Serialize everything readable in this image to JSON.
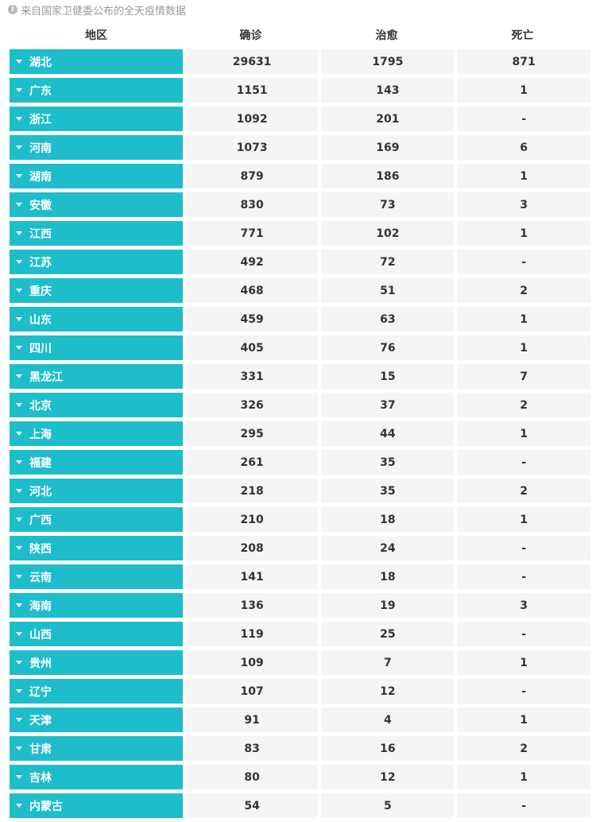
{
  "source_note": "来自国家卫健委公布的全天疫情数据",
  "info_icon_glyph": "i",
  "headers": {
    "area": "地区",
    "confirmed": "确诊",
    "cured": "治愈",
    "dead": "死亡"
  },
  "accent_color": "#1ebdcb",
  "rows": [
    {
      "area": "湖北",
      "confirmed": "29631",
      "cured": "1795",
      "dead": "871"
    },
    {
      "area": "广东",
      "confirmed": "1151",
      "cured": "143",
      "dead": "1"
    },
    {
      "area": "浙江",
      "confirmed": "1092",
      "cured": "201",
      "dead": "-"
    },
    {
      "area": "河南",
      "confirmed": "1073",
      "cured": "169",
      "dead": "6"
    },
    {
      "area": "湖南",
      "confirmed": "879",
      "cured": "186",
      "dead": "1"
    },
    {
      "area": "安徽",
      "confirmed": "830",
      "cured": "73",
      "dead": "3"
    },
    {
      "area": "江西",
      "confirmed": "771",
      "cured": "102",
      "dead": "1"
    },
    {
      "area": "江苏",
      "confirmed": "492",
      "cured": "72",
      "dead": "-"
    },
    {
      "area": "重庆",
      "confirmed": "468",
      "cured": "51",
      "dead": "2"
    },
    {
      "area": "山东",
      "confirmed": "459",
      "cured": "63",
      "dead": "1"
    },
    {
      "area": "四川",
      "confirmed": "405",
      "cured": "76",
      "dead": "1"
    },
    {
      "area": "黑龙江",
      "confirmed": "331",
      "cured": "15",
      "dead": "7"
    },
    {
      "area": "北京",
      "confirmed": "326",
      "cured": "37",
      "dead": "2"
    },
    {
      "area": "上海",
      "confirmed": "295",
      "cured": "44",
      "dead": "1"
    },
    {
      "area": "福建",
      "confirmed": "261",
      "cured": "35",
      "dead": "-"
    },
    {
      "area": "河北",
      "confirmed": "218",
      "cured": "35",
      "dead": "2"
    },
    {
      "area": "广西",
      "confirmed": "210",
      "cured": "18",
      "dead": "1"
    },
    {
      "area": "陕西",
      "confirmed": "208",
      "cured": "24",
      "dead": "-"
    },
    {
      "area": "云南",
      "confirmed": "141",
      "cured": "18",
      "dead": "-"
    },
    {
      "area": "海南",
      "confirmed": "136",
      "cured": "19",
      "dead": "3"
    },
    {
      "area": "山西",
      "confirmed": "119",
      "cured": "25",
      "dead": "-"
    },
    {
      "area": "贵州",
      "confirmed": "109",
      "cured": "7",
      "dead": "1"
    },
    {
      "area": "辽宁",
      "confirmed": "107",
      "cured": "12",
      "dead": "-"
    },
    {
      "area": "天津",
      "confirmed": "91",
      "cured": "4",
      "dead": "1"
    },
    {
      "area": "甘肃",
      "confirmed": "83",
      "cured": "16",
      "dead": "2"
    },
    {
      "area": "吉林",
      "confirmed": "80",
      "cured": "12",
      "dead": "1"
    },
    {
      "area": "内蒙古",
      "confirmed": "54",
      "cured": "5",
      "dead": "-"
    }
  ]
}
